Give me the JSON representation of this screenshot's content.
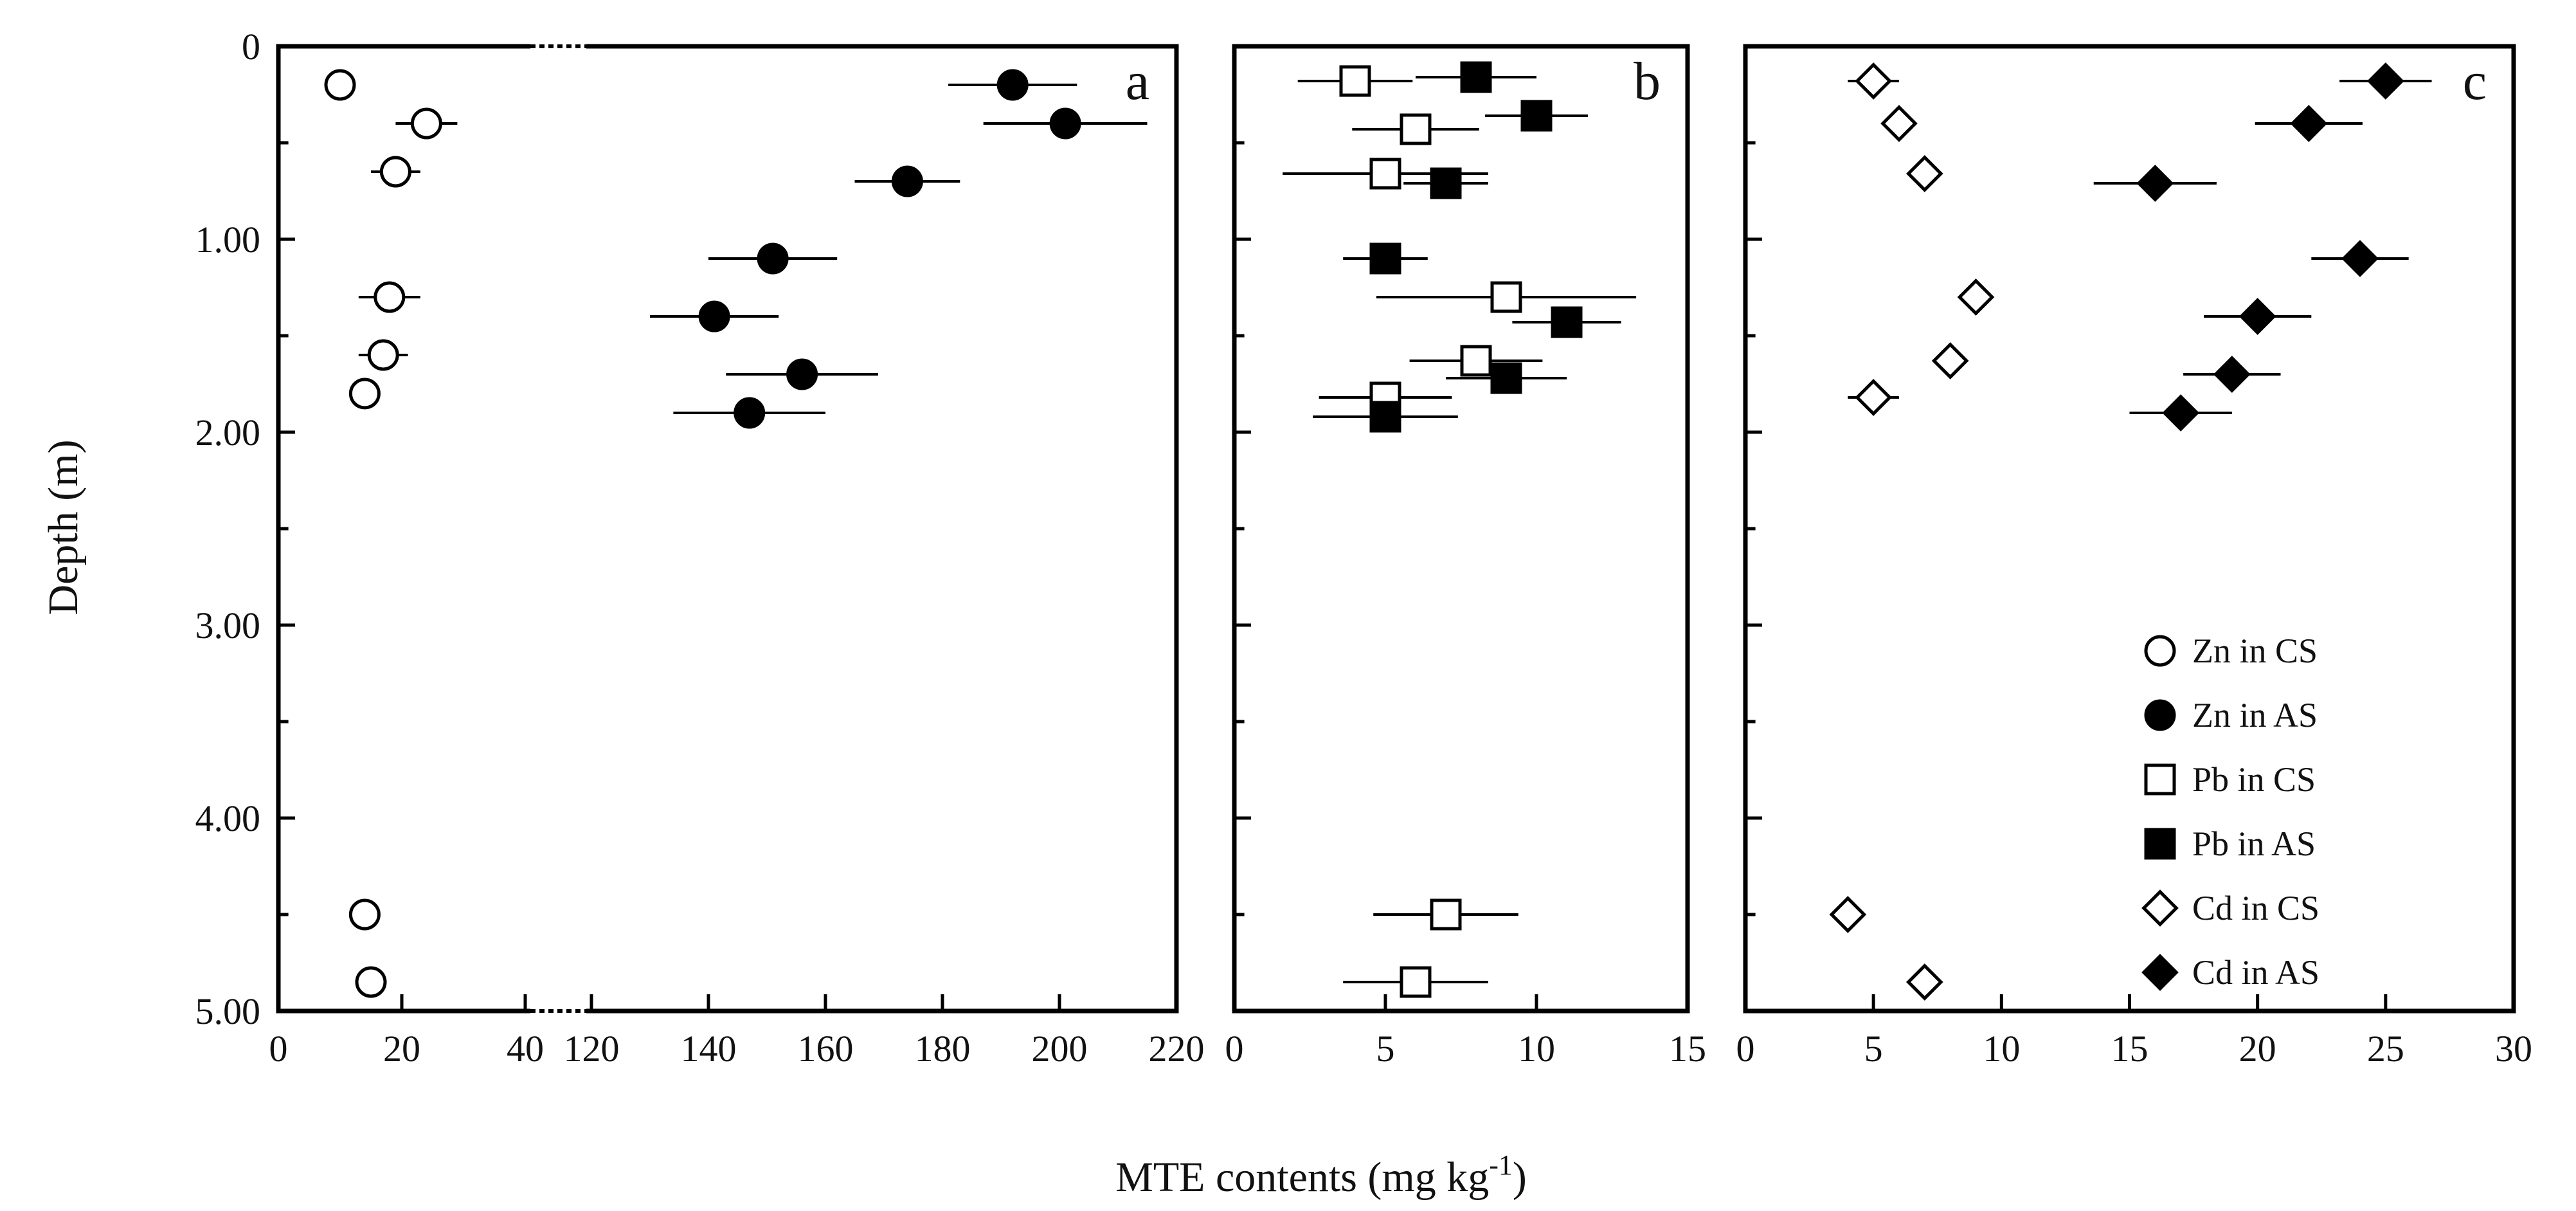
{
  "chart_data": [
    {
      "type": "scatter",
      "panel_label": "a",
      "ylabel": "Depth (m)",
      "y_tick_labels": [
        "0",
        "1.00",
        "2.00",
        "3.00",
        "4.00",
        "5.00"
      ],
      "y_ticks": [
        0,
        1,
        2,
        3,
        4,
        5
      ],
      "ylim": [
        0,
        5
      ],
      "x_tick_labels": [
        "0",
        "20",
        "40",
        "120",
        "140",
        "160",
        "180",
        "200",
        "220"
      ],
      "x_ticks": [
        0,
        20,
        40,
        120,
        140,
        160,
        180,
        200,
        220
      ],
      "x_axis_break": [
        40,
        120
      ],
      "xlim": [
        0,
        220
      ],
      "series": [
        {
          "name": "Zn in CS",
          "marker": "open-circle",
          "points": [
            {
              "x": 10,
              "y": 0.2
            },
            {
              "x": 24,
              "y": 0.4,
              "err": 5
            },
            {
              "x": 19,
              "y": 0.65,
              "err": 4
            },
            {
              "x": 18,
              "y": 1.3,
              "err": 5
            },
            {
              "x": 17,
              "y": 1.6,
              "err": 4
            },
            {
              "x": 14,
              "y": 1.8
            },
            {
              "x": 14,
              "y": 4.5
            },
            {
              "x": 15,
              "y": 4.85
            }
          ]
        },
        {
          "name": "Zn in AS",
          "marker": "filled-circle",
          "points": [
            {
              "x": 192,
              "y": 0.2,
              "err": 11
            },
            {
              "x": 201,
              "y": 0.4,
              "err": 14
            },
            {
              "x": 174,
              "y": 0.7,
              "err": 9
            },
            {
              "x": 151,
              "y": 1.1,
              "err": 11
            },
            {
              "x": 141,
              "y": 1.4,
              "err": 11
            },
            {
              "x": 156,
              "y": 1.7,
              "err": 13
            },
            {
              "x": 147,
              "y": 1.9,
              "err": 13
            }
          ]
        }
      ]
    },
    {
      "type": "scatter",
      "panel_label": "b",
      "x_tick_labels": [
        "0",
        "5",
        "10",
        "15"
      ],
      "x_ticks": [
        0,
        5,
        10,
        15
      ],
      "xlim": [
        0,
        15
      ],
      "ylim": [
        0,
        5
      ],
      "series": [
        {
          "name": "Pb in CS",
          "marker": "open-square",
          "points": [
            {
              "x": 4,
              "y": 0.18,
              "err": 1.9
            },
            {
              "x": 6,
              "y": 0.43,
              "err": 2.1
            },
            {
              "x": 5,
              "y": 0.66,
              "err": 3.4
            },
            {
              "x": 9,
              "y": 1.3,
              "err": 4.3
            },
            {
              "x": 8,
              "y": 1.63,
              "err": 2.2
            },
            {
              "x": 5,
              "y": 1.82,
              "err": 2.2
            },
            {
              "x": 7,
              "y": 4.5,
              "err": 2.4
            },
            {
              "x": 6,
              "y": 4.85,
              "err": 2.4
            }
          ]
        },
        {
          "name": "Pb in AS",
          "marker": "filled-square",
          "points": [
            {
              "x": 8,
              "y": 0.16,
              "err": 2.0
            },
            {
              "x": 10,
              "y": 0.36,
              "err": 1.7
            },
            {
              "x": 7,
              "y": 0.71,
              "err": 1.4
            },
            {
              "x": 5,
              "y": 1.1,
              "err": 1.4
            },
            {
              "x": 11,
              "y": 1.43,
              "err": 1.8
            },
            {
              "x": 9,
              "y": 1.72,
              "err": 2.0
            },
            {
              "x": 5,
              "y": 1.92,
              "err": 2.4
            }
          ]
        }
      ]
    },
    {
      "type": "scatter",
      "panel_label": "c",
      "x_tick_labels": [
        "0",
        "5",
        "10",
        "15",
        "20",
        "25",
        "30"
      ],
      "x_ticks": [
        0,
        5,
        10,
        15,
        20,
        25,
        30
      ],
      "xlim": [
        0,
        30
      ],
      "ylim": [
        0,
        5
      ],
      "series": [
        {
          "name": "Cd in CS",
          "marker": "open-diamond",
          "points": [
            {
              "x": 5,
              "y": 0.18,
              "err": 1.0
            },
            {
              "x": 6,
              "y": 0.4,
              "err": 0.6
            },
            {
              "x": 7,
              "y": 0.66,
              "err": 0.6
            },
            {
              "x": 9,
              "y": 1.3,
              "err": 0.6
            },
            {
              "x": 8,
              "y": 1.63,
              "err": 0.6
            },
            {
              "x": 5,
              "y": 1.82,
              "err": 1.0
            },
            {
              "x": 4,
              "y": 4.5
            },
            {
              "x": 7,
              "y": 4.85
            }
          ]
        },
        {
          "name": "Cd in AS",
          "marker": "filled-diamond",
          "points": [
            {
              "x": 25,
              "y": 0.18,
              "err": 1.8
            },
            {
              "x": 22,
              "y": 0.4,
              "err": 2.1
            },
            {
              "x": 16,
              "y": 0.71,
              "err": 2.4
            },
            {
              "x": 24,
              "y": 1.1,
              "err": 1.9
            },
            {
              "x": 20,
              "y": 1.4,
              "err": 2.1
            },
            {
              "x": 19,
              "y": 1.7,
              "err": 1.9
            },
            {
              "x": 17,
              "y": 1.9,
              "err": 2.0
            }
          ]
        }
      ]
    }
  ],
  "shared": {
    "xlabel_main": "MTE contents (mg kg",
    "xlabel_sup": "-1",
    "xlabel_end": ")",
    "legend_position": "bottom-right of panel c"
  }
}
